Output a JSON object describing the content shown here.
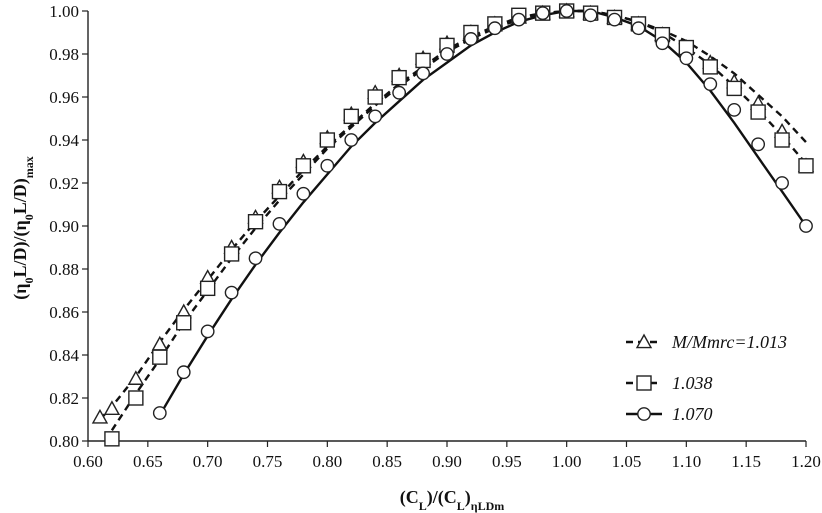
{
  "chart_data": {
    "type": "line",
    "title": "",
    "xlabel": "(C_L)/(C_L)_ηLDm",
    "ylabel": "(η_0 L/D)/(η_0 L/D)_max",
    "xlim": [
      0.6,
      1.2
    ],
    "ylim": [
      0.8,
      1.0
    ],
    "xticks": [
      "0.60",
      "0.65",
      "0.70",
      "0.75",
      "0.80",
      "0.85",
      "0.90",
      "0.95",
      "1.00",
      "1.05",
      "1.10",
      "1.15",
      "1.20"
    ],
    "yticks": [
      "0.80",
      "0.82",
      "0.84",
      "0.86",
      "0.88",
      "0.90",
      "0.92",
      "0.94",
      "0.96",
      "0.98",
      "1.00"
    ],
    "grid": false,
    "legend_position": "bottom-right",
    "series": [
      {
        "name": "M/Mmrc=1.013",
        "marker": "triangle",
        "x": [
          0.61,
          0.62,
          0.64,
          0.66,
          0.68,
          0.7,
          0.72,
          0.74,
          0.76,
          0.78,
          0.8,
          0.82,
          0.84,
          0.86,
          0.88,
          0.9,
          0.92,
          0.94,
          0.96,
          0.98,
          1.0,
          1.02,
          1.04,
          1.06,
          1.08,
          1.1,
          1.12,
          1.14,
          1.16,
          1.18,
          1.2
        ],
        "y": [
          0.811,
          0.815,
          0.829,
          0.845,
          0.86,
          0.876,
          0.89,
          0.904,
          0.918,
          0.93,
          0.941,
          0.952,
          0.962,
          0.97,
          0.978,
          0.985,
          0.99,
          0.994,
          0.997,
          0.999,
          1.0,
          0.999,
          0.997,
          0.994,
          0.989,
          0.983,
          0.976,
          0.967,
          0.957,
          0.944,
          0.928
        ],
        "fit_y": [
          0.81,
          0.816,
          0.83,
          0.846,
          0.861,
          0.875,
          0.889,
          0.902,
          0.914,
          0.926,
          0.937,
          0.947,
          0.957,
          0.966,
          0.974,
          0.982,
          0.988,
          0.993,
          0.997,
          0.999,
          1.0,
          1.0,
          0.998,
          0.995,
          0.991,
          0.986,
          0.979,
          0.971,
          0.961,
          0.951,
          0.939
        ]
      },
      {
        "name": "1.038",
        "marker": "square",
        "x": [
          0.62,
          0.64,
          0.66,
          0.68,
          0.7,
          0.72,
          0.74,
          0.76,
          0.78,
          0.8,
          0.82,
          0.84,
          0.86,
          0.88,
          0.9,
          0.92,
          0.94,
          0.96,
          0.98,
          1.0,
          1.02,
          1.04,
          1.06,
          1.08,
          1.1,
          1.12,
          1.14,
          1.16,
          1.18,
          1.2
        ],
        "y": [
          0.801,
          0.82,
          0.839,
          0.855,
          0.871,
          0.887,
          0.902,
          0.916,
          0.928,
          0.94,
          0.951,
          0.96,
          0.969,
          0.977,
          0.984,
          0.99,
          0.994,
          0.998,
          0.999,
          1.0,
          0.999,
          0.997,
          0.994,
          0.989,
          0.983,
          0.974,
          0.964,
          0.953,
          0.94,
          0.928
        ],
        "fit_y": [
          0.805,
          0.822,
          0.838,
          0.855,
          0.87,
          0.885,
          0.899,
          0.912,
          0.924,
          0.936,
          0.946,
          0.956,
          0.965,
          0.973,
          0.981,
          0.987,
          0.992,
          0.996,
          0.999,
          1.0,
          1.0,
          0.998,
          0.995,
          0.99,
          0.983,
          0.975,
          0.965,
          0.954,
          0.942,
          0.929
        ]
      },
      {
        "name": "1.070",
        "marker": "circle",
        "x": [
          0.66,
          0.68,
          0.7,
          0.72,
          0.74,
          0.76,
          0.78,
          0.8,
          0.82,
          0.84,
          0.86,
          0.88,
          0.9,
          0.92,
          0.94,
          0.96,
          0.98,
          1.0,
          1.02,
          1.04,
          1.06,
          1.08,
          1.1,
          1.12,
          1.14,
          1.16,
          1.18,
          1.2
        ],
        "y": [
          0.813,
          0.832,
          0.851,
          0.869,
          0.885,
          0.901,
          0.915,
          0.928,
          0.94,
          0.951,
          0.962,
          0.971,
          0.98,
          0.987,
          0.992,
          0.996,
          0.999,
          1.0,
          0.998,
          0.996,
          0.992,
          0.985,
          0.978,
          0.966,
          0.954,
          0.938,
          0.92,
          0.9
        ],
        "fit_y": [
          0.812,
          0.831,
          0.849,
          0.866,
          0.882,
          0.897,
          0.911,
          0.924,
          0.937,
          0.948,
          0.958,
          0.968,
          0.976,
          0.984,
          0.99,
          0.995,
          0.998,
          1.0,
          1.0,
          0.997,
          0.993,
          0.986,
          0.976,
          0.963,
          0.948,
          0.932,
          0.916,
          0.9
        ]
      }
    ],
    "legend": [
      {
        "label": "M/Mmrc=1.013",
        "marker": "triangle"
      },
      {
        "label": "1.038",
        "marker": "square"
      },
      {
        "label": "1.070",
        "marker": "circle"
      }
    ]
  }
}
